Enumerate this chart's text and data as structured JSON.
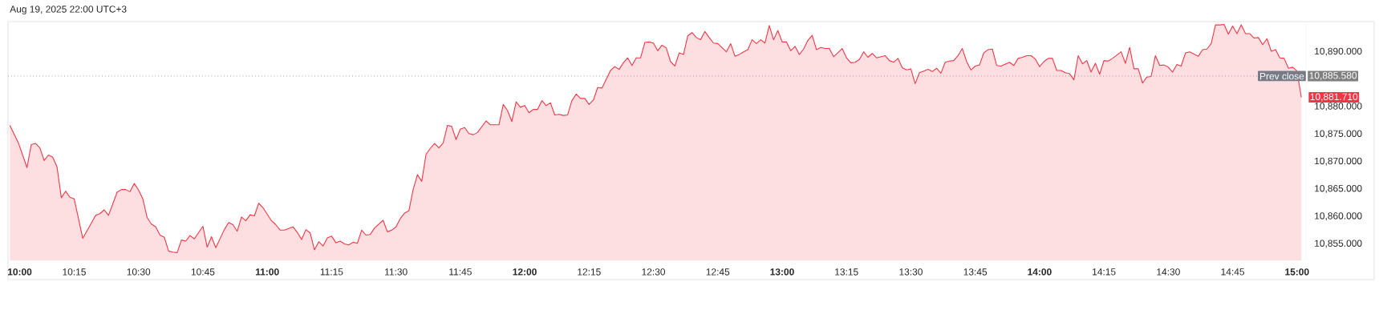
{
  "chart_data": {
    "type": "area",
    "color": "#f23645",
    "annotations": [
      "Aug 19, 2025 22:00 UTC+3",
      "10,885.580",
      {
        "text": "10,881.710",
        "x": 15.0167,
        "y": 10881.71
      }
    ],
    "ref_lines": [
      {
        "axis": "y",
        "value": 10885.58,
        "label": "Prev close",
        "color": "#787b86",
        "line_style": "dotted"
      }
    ],
    "xlim": [
      9.993,
      15.035
    ],
    "ylim": [
      10852,
      10895.5
    ],
    "xticks": [
      {
        "value": 10,
        "label": "10:00"
      },
      {
        "value": 10.25,
        "label": "10:15"
      },
      {
        "value": 10.5,
        "label": "10:30"
      },
      {
        "value": 10.75,
        "label": "10:45"
      },
      {
        "value": 11,
        "label": "11:00"
      },
      {
        "value": 11.25,
        "label": "11:15"
      },
      {
        "value": 11.5,
        "label": "11:30"
      },
      {
        "value": 11.75,
        "label": "11:45"
      },
      {
        "value": 12,
        "label": "12:00"
      },
      {
        "value": 12.25,
        "label": "12:15"
      },
      {
        "value": 12.5,
        "label": "12:30"
      },
      {
        "value": 12.75,
        "label": "12:45"
      },
      {
        "value": 13,
        "label": "13:00"
      },
      {
        "value": 13.25,
        "label": "13:15"
      },
      {
        "value": 13.5,
        "label": "13:30"
      },
      {
        "value": 13.75,
        "label": "13:45"
      },
      {
        "value": 14,
        "label": "14:00"
      },
      {
        "value": 14.25,
        "label": "14:15"
      },
      {
        "value": 14.5,
        "label": "14:30"
      },
      {
        "value": 14.75,
        "label": "14:45"
      },
      {
        "value": 15,
        "label": "15:00"
      }
    ],
    "yticks": [
      {
        "value": 10855,
        "label": "10,855.000"
      },
      {
        "value": 10860,
        "label": "10,860.000"
      },
      {
        "value": 10865,
        "label": "10,865.000"
      },
      {
        "value": 10870,
        "label": "10,870.000"
      },
      {
        "value": 10875,
        "label": "10,875.000"
      },
      {
        "value": 10880,
        "label": "10,880.000"
      },
      {
        "value": 10890,
        "label": "10,890.000"
      }
    ],
    "x": [
      10.0,
      10.0333,
      10.0667,
      10.0833,
      10.1,
      10.1167,
      10.1333,
      10.15,
      10.1667,
      10.1833,
      10.2,
      10.2167,
      10.2333,
      10.25,
      10.2833,
      10.3167,
      10.3333,
      10.35,
      10.3667,
      10.3833,
      10.4167,
      10.4333,
      10.45,
      10.4667,
      10.4833,
      10.5,
      10.5167,
      10.5333,
      10.55,
      10.5667,
      10.5833,
      10.6,
      10.6167,
      10.6333,
      10.65,
      10.6667,
      10.6833,
      10.7,
      10.7167,
      10.75,
      10.7667,
      10.7833,
      10.8,
      10.8333,
      10.85,
      10.8667,
      10.8833,
      10.9,
      10.9167,
      10.9333,
      10.95,
      10.9667,
      10.9833,
      11.0167,
      11.0333,
      11.05,
      11.0667,
      11.1,
      11.1167,
      11.1333,
      11.15,
      11.1667,
      11.1833,
      11.2,
      11.2167,
      11.2333,
      11.25,
      11.2667,
      11.2833,
      11.3,
      11.3167,
      11.3333,
      11.35,
      11.3667,
      11.3833,
      11.4,
      11.4167,
      11.45,
      11.4667,
      11.4833,
      11.5,
      11.5167,
      11.5333,
      11.55,
      11.5667,
      11.5833,
      11.6,
      11.6167,
      11.6333,
      11.65,
      11.6667,
      11.6833,
      11.7,
      11.7167,
      11.7333,
      11.75,
      11.7667,
      11.7833,
      11.8,
      11.8167,
      11.85,
      11.8667,
      11.9,
      11.9167,
      11.9333,
      11.95,
      11.9667,
      11.9833,
      12.0,
      12.0167,
      12.0333,
      12.05,
      12.0667,
      12.0833,
      12.1,
      12.1167,
      12.1333,
      12.15,
      12.1667,
      12.1833,
      12.2,
      12.2167,
      12.2333,
      12.25,
      12.2667,
      12.2833,
      12.3,
      12.3167,
      12.3333,
      12.35,
      12.3667,
      12.3833,
      12.4,
      12.4167,
      12.4333,
      12.45,
      12.4667,
      12.4833,
      12.5,
      12.5167,
      12.5333,
      12.55,
      12.5667,
      12.5833,
      12.6,
      12.6167,
      12.6333,
      12.65,
      12.6667,
      12.6833,
      12.7,
      12.7167,
      12.7333,
      12.75,
      12.7833,
      12.8,
      12.8167,
      12.8333,
      12.85,
      12.8667,
      12.8833,
      12.9,
      12.9167,
      12.9333,
      12.95,
      12.9667,
      12.9833,
      13.0,
      13.0167,
      13.0333,
      13.05,
      13.0667,
      13.0833,
      13.1,
      13.1167,
      13.1333,
      13.15,
      13.1667,
      13.1833,
      13.2,
      13.2333,
      13.25,
      13.2667,
      13.2833,
      13.3,
      13.3167,
      13.3333,
      13.35,
      13.3667,
      13.4,
      13.4167,
      13.4333,
      13.45,
      13.4667,
      13.4833,
      13.5,
      13.5167,
      13.5333,
      13.55,
      13.5667,
      13.5833,
      13.6,
      13.6167,
      13.6333,
      13.65,
      13.6667,
      13.6833,
      13.7,
      13.7167,
      13.7333,
      13.75,
      13.7667,
      13.7833,
      13.8,
      13.8167,
      13.8333,
      13.85,
      13.8833,
      13.9,
      13.9167,
      13.9333,
      13.95,
      13.9667,
      13.9833,
      14.0,
      14.0167,
      14.0333,
      14.05,
      14.0667,
      14.0833,
      14.1,
      14.1167,
      14.1333,
      14.15,
      14.1667,
      14.1833,
      14.2,
      14.2167,
      14.2333,
      14.25,
      14.2667,
      14.2833,
      14.3167,
      14.3333,
      14.35,
      14.3667,
      14.3833,
      14.4,
      14.4167,
      14.4333,
      14.45,
      14.4667,
      14.4833,
      14.5,
      14.5167,
      14.5333,
      14.55,
      14.5667,
      14.5833,
      14.6167,
      14.6333,
      14.65,
      14.6667,
      14.6833,
      14.7,
      14.7167,
      14.7333,
      14.75,
      14.7667,
      14.7833,
      14.8,
      14.8167,
      14.8333,
      14.85,
      14.8667,
      14.8833,
      14.9,
      14.9167,
      14.9333,
      14.95,
      14.9667,
      14.9833,
      15.0,
      15.0167
    ],
    "values": [
      10876.6,
      10873.4,
      10868.9,
      10873.1,
      10873.3,
      10872.5,
      10870.2,
      10871.2,
      10870.8,
      10869.0,
      10863.4,
      10864.6,
      10863.5,
      10863.2,
      10856.0,
      10858.8,
      10860.2,
      10860.5,
      10861.2,
      10860.2,
      10864.4,
      10864.9,
      10864.9,
      10864.5,
      10866.0,
      10864.8,
      10863.2,
      10859.8,
      10858.6,
      10858.1,
      10856.6,
      10856.2,
      10853.7,
      10853.5,
      10853.4,
      10855.7,
      10855.5,
      10856.5,
      10855.9,
      10858.2,
      10854.4,
      10856.3,
      10854.3,
      10857.6,
      10858.9,
      10858.5,
      10857.3,
      10859.9,
      10859.2,
      10860.3,
      10860.1,
      10862.4,
      10861.6,
      10859.2,
      10858.5,
      10857.5,
      10857.5,
      10858.1,
      10857.1,
      10855.8,
      10857.6,
      10857.0,
      10853.9,
      10855.4,
      10854.6,
      10856.1,
      10856.4,
      10855.2,
      10855.5,
      10855.0,
      10854.8,
      10855.3,
      10855.1,
      10857.5,
      10856.6,
      10856.7,
      10857.9,
      10859.3,
      10857.2,
      10857.5,
      10858.1,
      10859.6,
      10860.6,
      10861.0,
      10864.9,
      10867.6,
      10866.4,
      10871.3,
      10872.4,
      10873.3,
      10872.5,
      10873.4,
      10876.6,
      10876.4,
      10874.0,
      10875.9,
      10876.2,
      10875.1,
      10874.9,
      10875.3,
      10877.4,
      10876.7,
      10876.7,
      10880.4,
      10879.3,
      10877.3,
      10880.9,
      10879.9,
      10880.2,
      10878.9,
      10879.5,
      10879.5,
      10881.1,
      10880.2,
      10880.7,
      10878.5,
      10878.6,
      10878.4,
      10878.5,
      10881.1,
      10882.3,
      10881.5,
      10881.5,
      10880.4,
      10881.2,
      10883.5,
      10883.4,
      10885.0,
      10886.6,
      10887.3,
      10886.8,
      10888.0,
      10888.9,
      10887.5,
      10888.9,
      10888.9,
      10891.7,
      10891.8,
      10891.6,
      10890.2,
      10891.2,
      10890.7,
      10888.2,
      10887.4,
      10889.8,
      10889.5,
      10892.9,
      10893.5,
      10892.6,
      10892.2,
      10893.7,
      10892.6,
      10891.6,
      10891.5,
      10890.0,
      10891.5,
      10889.2,
      10889.5,
      10890.0,
      10890.4,
      10892.2,
      10891.5,
      10892.2,
      10891.6,
      10894.8,
      10892.2,
      10893.9,
      10891.8,
      10891.8,
      10890.2,
      10891.0,
      10889.5,
      10890.5,
      10892.1,
      10893.0,
      10890.4,
      10890.8,
      10890.6,
      10890.6,
      10889.1,
      10890.6,
      10888.9,
      10888.0,
      10888.1,
      10888.6,
      10890.0,
      10889.0,
      10889.7,
      10888.9,
      10889.3,
      10888.4,
      10888.1,
      10888.8,
      10887.1,
      10886.7,
      10886.9,
      10884.2,
      10886.2,
      10886.5,
      10886.8,
      10886.4,
      10887.0,
      10886.1,
      10888.1,
      10888.3,
      10888.4,
      10889.3,
      10890.6,
      10888.2,
      10886.7,
      10887.4,
      10887.6,
      10889.8,
      10890.4,
      10890.5,
      10887.5,
      10887.4,
      10888.1,
      10887.5,
      10888.8,
      10889.0,
      10889.3,
      10889.3,
      10888.7,
      10887.3,
      10888.2,
      10888.8,
      10888.8,
      10886.6,
      10886.6,
      10886.2,
      10886.0,
      10884.9,
      10889.3,
      10887.8,
      10888.4,
      10886.3,
      10887.9,
      10885.9,
      10888.4,
      10888.3,
      10888.8,
      10890.0,
      10887.9,
      10890.8,
      10886.9,
      10886.9,
      10884.3,
      10885.4,
      10885.5,
      10889.3,
      10887.5,
      10887.6,
      10887.2,
      10886.3,
      10887.7,
      10887.4,
      10889.8,
      10890.0,
      10889.2,
      10890.4,
      10890.5,
      10891.5,
      10894.9,
      10894.9,
      10895.0,
      10893.2,
      10894.7,
      10893.3,
      10894.9,
      10893.3,
      10893.3,
      10892.5,
      10892.6,
      10891.3,
      10892.4,
      10890.1,
      10890.4,
      10888.9,
      10888.8,
      10887.0,
      10887.2,
      10886.5,
      10881.71
    ]
  }
}
